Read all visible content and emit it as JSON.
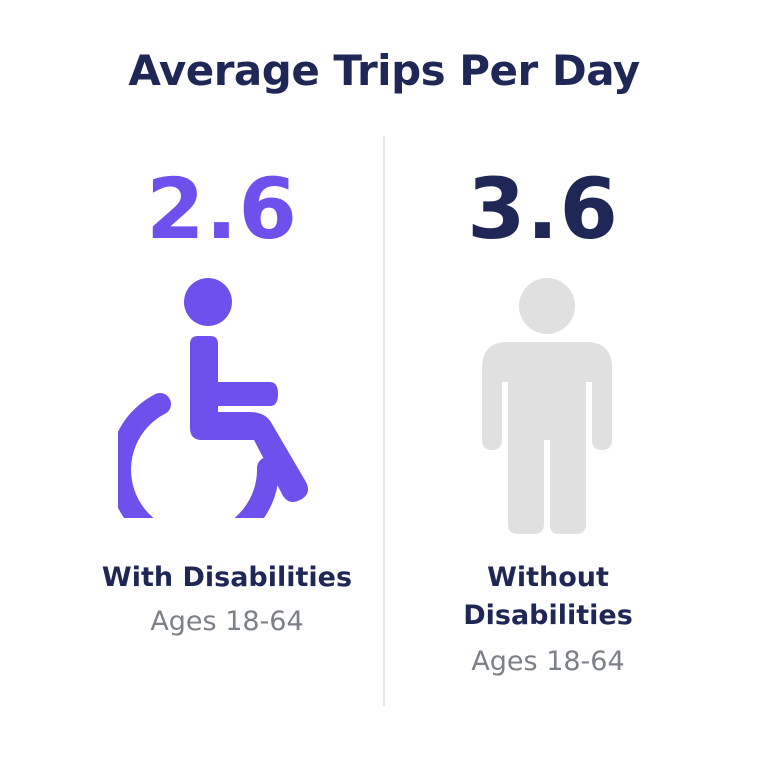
{
  "chart_data": {
    "type": "pictograph",
    "title": "Average Trips Per Day",
    "categories": [
      "With Disabilities",
      "Without Disabilities"
    ],
    "values": [
      2.6,
      3.6
    ],
    "items": [
      {
        "value_label": "2.6",
        "label": "With Disabilities",
        "sublabel": "Ages 18-64",
        "icon": "wheelchair-icon",
        "color": "#6e50ec"
      },
      {
        "value_label": "3.6",
        "label_line1": "Without",
        "label_line2": "Disabilities",
        "sublabel": "Ages 18-64",
        "icon": "person-icon",
        "color": "#1e2756"
      }
    ]
  },
  "colors": {
    "accent": "#6e50ec",
    "navy": "#1e2756",
    "icon_gray": "#e0e0e0",
    "sublabel_gray": "#7c8088"
  }
}
